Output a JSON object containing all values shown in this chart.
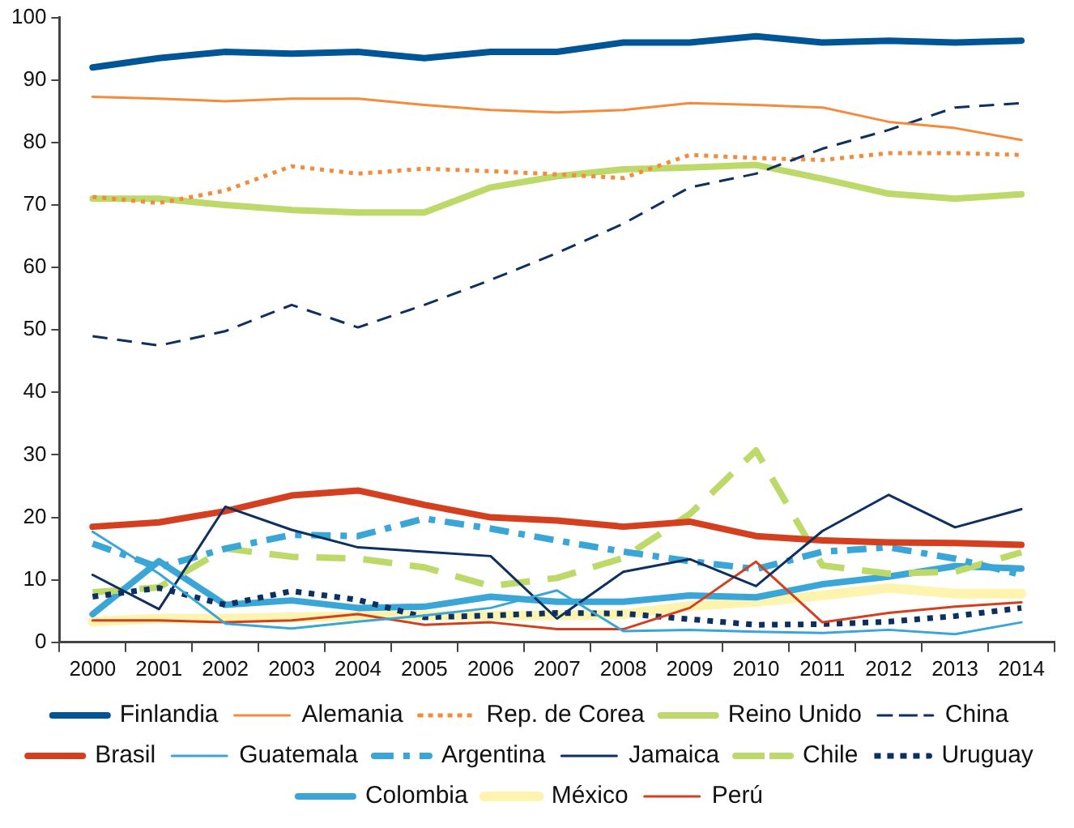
{
  "chart_data": {
    "type": "line",
    "categories": [
      "2000",
      "2001",
      "2002",
      "2003",
      "2004",
      "2005",
      "2006",
      "2007",
      "2008",
      "2009",
      "2010",
      "2011",
      "2012",
      "2013",
      "2014"
    ],
    "ylim": [
      0,
      100
    ],
    "yticks": [
      0,
      10,
      20,
      30,
      40,
      50,
      60,
      70,
      80,
      90,
      100
    ],
    "grid": false,
    "legend": "bottom",
    "marker": "none",
    "series": [
      {
        "name": "Finlandia",
        "color": "#005596",
        "line_style": "solid",
        "values": [
          92,
          93.5,
          94.5,
          94.2,
          94.5,
          93.5,
          94.5,
          94.5,
          96,
          96,
          97,
          96,
          96.3,
          96,
          96.3
        ]
      },
      {
        "name": "Alemania",
        "color": "#f58b3a",
        "line_style": "solid",
        "values": [
          87.3,
          87,
          86.6,
          87,
          87,
          86,
          85.2,
          84.8,
          85.2,
          86.3,
          86,
          85.6,
          83.3,
          82.3,
          80.4
        ]
      },
      {
        "name": "Rep. de Corea",
        "color": "#f58b3a",
        "line_style": "dotted",
        "values": [
          71.3,
          70.3,
          72.3,
          76.2,
          75,
          75.8,
          75.4,
          74.9,
          74.3,
          78,
          77.5,
          77.2,
          78.3,
          78.3,
          78
        ]
      },
      {
        "name": "Reino Unido",
        "color": "#bcd96a",
        "line_style": "solid",
        "values": [
          71,
          71,
          70,
          69.2,
          68.8,
          68.8,
          72.8,
          74.6,
          75.7,
          76,
          76.4,
          74.2,
          71.8,
          71,
          71.7
        ]
      },
      {
        "name": "China",
        "color": "#0d3060",
        "line_style": "dashed",
        "values": [
          49,
          47.5,
          49.8,
          54,
          50.4,
          54,
          58,
          62.3,
          67,
          72.8,
          75,
          79,
          82,
          85.6,
          86.3
        ]
      },
      {
        "name": "Brasil",
        "color": "#d4401f",
        "line_style": "solid",
        "values": [
          18.5,
          19.2,
          21,
          23.5,
          24.3,
          22,
          20,
          19.5,
          18.5,
          19.3,
          17,
          16.3,
          16,
          15.9,
          15.6
        ]
      },
      {
        "name": "Guatemala",
        "color": "#3aa6d8",
        "line_style": "solid",
        "values": [
          17.7,
          11,
          3,
          2.2,
          3.3,
          4.3,
          5.5,
          8.3,
          1.8,
          2,
          1.7,
          1.5,
          2,
          1.3,
          3.2
        ]
      },
      {
        "name": "Argentina",
        "color": "#3aa6d8",
        "line_style": "dashdot",
        "values": [
          15.8,
          12,
          15,
          17.2,
          17,
          19.8,
          18.2,
          16.3,
          14.5,
          13,
          11.7,
          14.5,
          15.2,
          13.4,
          10.8
        ]
      },
      {
        "name": "Jamaica",
        "color": "#0d3060",
        "line_style": "solid",
        "values": [
          10.8,
          5.3,
          21.7,
          18,
          15.2,
          14.5,
          13.8,
          3.8,
          11.3,
          13.3,
          9,
          17.8,
          23.6,
          18.4,
          21.3
        ]
      },
      {
        "name": "Chile",
        "color": "#bcd96a",
        "line_style": "dashed",
        "values": [
          8,
          8.8,
          15,
          13.7,
          13.4,
          12,
          9,
          10.3,
          13.5,
          20.5,
          30.7,
          12.3,
          11,
          11.3,
          14.4
        ]
      },
      {
        "name": "Uruguay",
        "color": "#0d3060",
        "line_style": "dotted",
        "values": [
          7.3,
          8.7,
          6,
          8.2,
          6.8,
          4,
          4.3,
          4.7,
          4.6,
          3.7,
          2.8,
          2.9,
          3.3,
          4.2,
          5.5
        ]
      },
      {
        "name": "Colombia",
        "color": "#3aa6d8",
        "line_style": "solid",
        "values": [
          4.5,
          13,
          6,
          6.7,
          5.5,
          5.7,
          7.3,
          6.5,
          6.5,
          7.5,
          7.2,
          9.3,
          10.5,
          12.2,
          11.8
        ]
      },
      {
        "name": "México",
        "color": "#fff3b0",
        "line_style": "solid",
        "values": [
          3.3,
          3.8,
          3.8,
          4,
          4.2,
          4.3,
          4.3,
          4.3,
          4.5,
          5.8,
          6.5,
          7.5,
          8.7,
          7.8,
          7.8
        ]
      },
      {
        "name": "Perú",
        "color": "#d4401f",
        "line_style": "solid",
        "values": [
          3.5,
          3.5,
          3.2,
          3.5,
          4.5,
          2.8,
          3.2,
          2.1,
          2.1,
          5.5,
          12.9,
          3.2,
          4.7,
          5.7,
          6.4
        ]
      }
    ]
  }
}
